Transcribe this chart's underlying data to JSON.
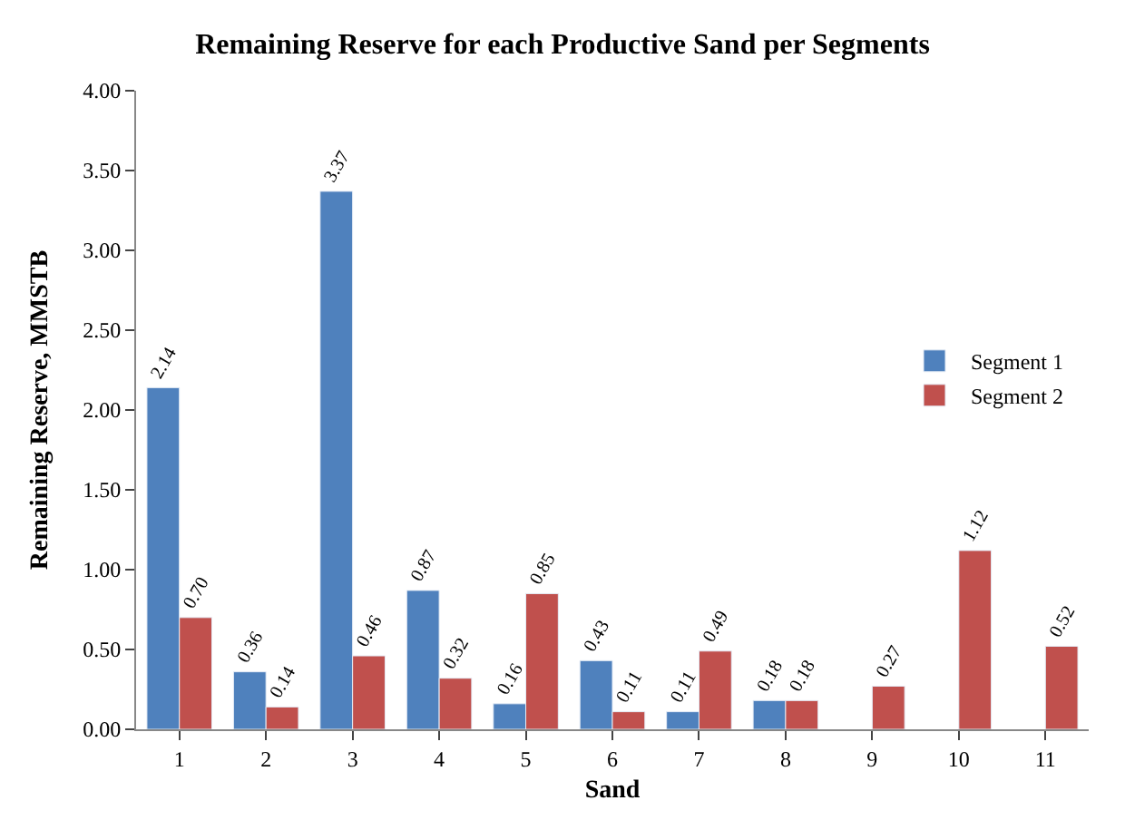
{
  "chart_data": {
    "type": "bar",
    "title": "Remaining Reserve for each Productive Sand per Segments",
    "xlabel": "Sand",
    "ylabel": "Remaining Reserve, MMSTB",
    "categories": [
      "1",
      "2",
      "3",
      "4",
      "5",
      "6",
      "7",
      "8",
      "9",
      "10",
      "11"
    ],
    "series": [
      {
        "name": "Segment 1",
        "color": "#4f81bd",
        "values": [
          2.14,
          0.36,
          3.37,
          0.87,
          0.16,
          0.43,
          0.11,
          0.18,
          null,
          null,
          null
        ],
        "value_labels": [
          "2.14",
          "0.36",
          "3.37",
          "0.87",
          "0.16",
          "0.43",
          "0.11",
          "0.18",
          null,
          null,
          null
        ]
      },
      {
        "name": "Segment 2",
        "color": "#c0504d",
        "values": [
          0.7,
          0.14,
          0.46,
          0.32,
          0.85,
          0.11,
          0.49,
          0.18,
          0.27,
          1.12,
          0.52
        ],
        "value_labels": [
          "0.70",
          "0.14",
          "0.46",
          "0.32",
          "0.85",
          "0.11",
          "0.49",
          "0.18",
          "0.27",
          "1.12",
          "0.52"
        ]
      }
    ],
    "ylim": [
      0,
      4
    ],
    "yticks": [
      {
        "value": 0,
        "label": "0.00"
      },
      {
        "value": 0.5,
        "label": "0.50"
      },
      {
        "value": 1,
        "label": "1.00"
      },
      {
        "value": 1.5,
        "label": "1.50"
      },
      {
        "value": 2,
        "label": "2.00"
      },
      {
        "value": 2.5,
        "label": "2.50"
      },
      {
        "value": 3,
        "label": "3.00"
      },
      {
        "value": 3.5,
        "label": "3.50"
      },
      {
        "value": 4,
        "label": "4.00"
      }
    ],
    "legend": "right"
  }
}
